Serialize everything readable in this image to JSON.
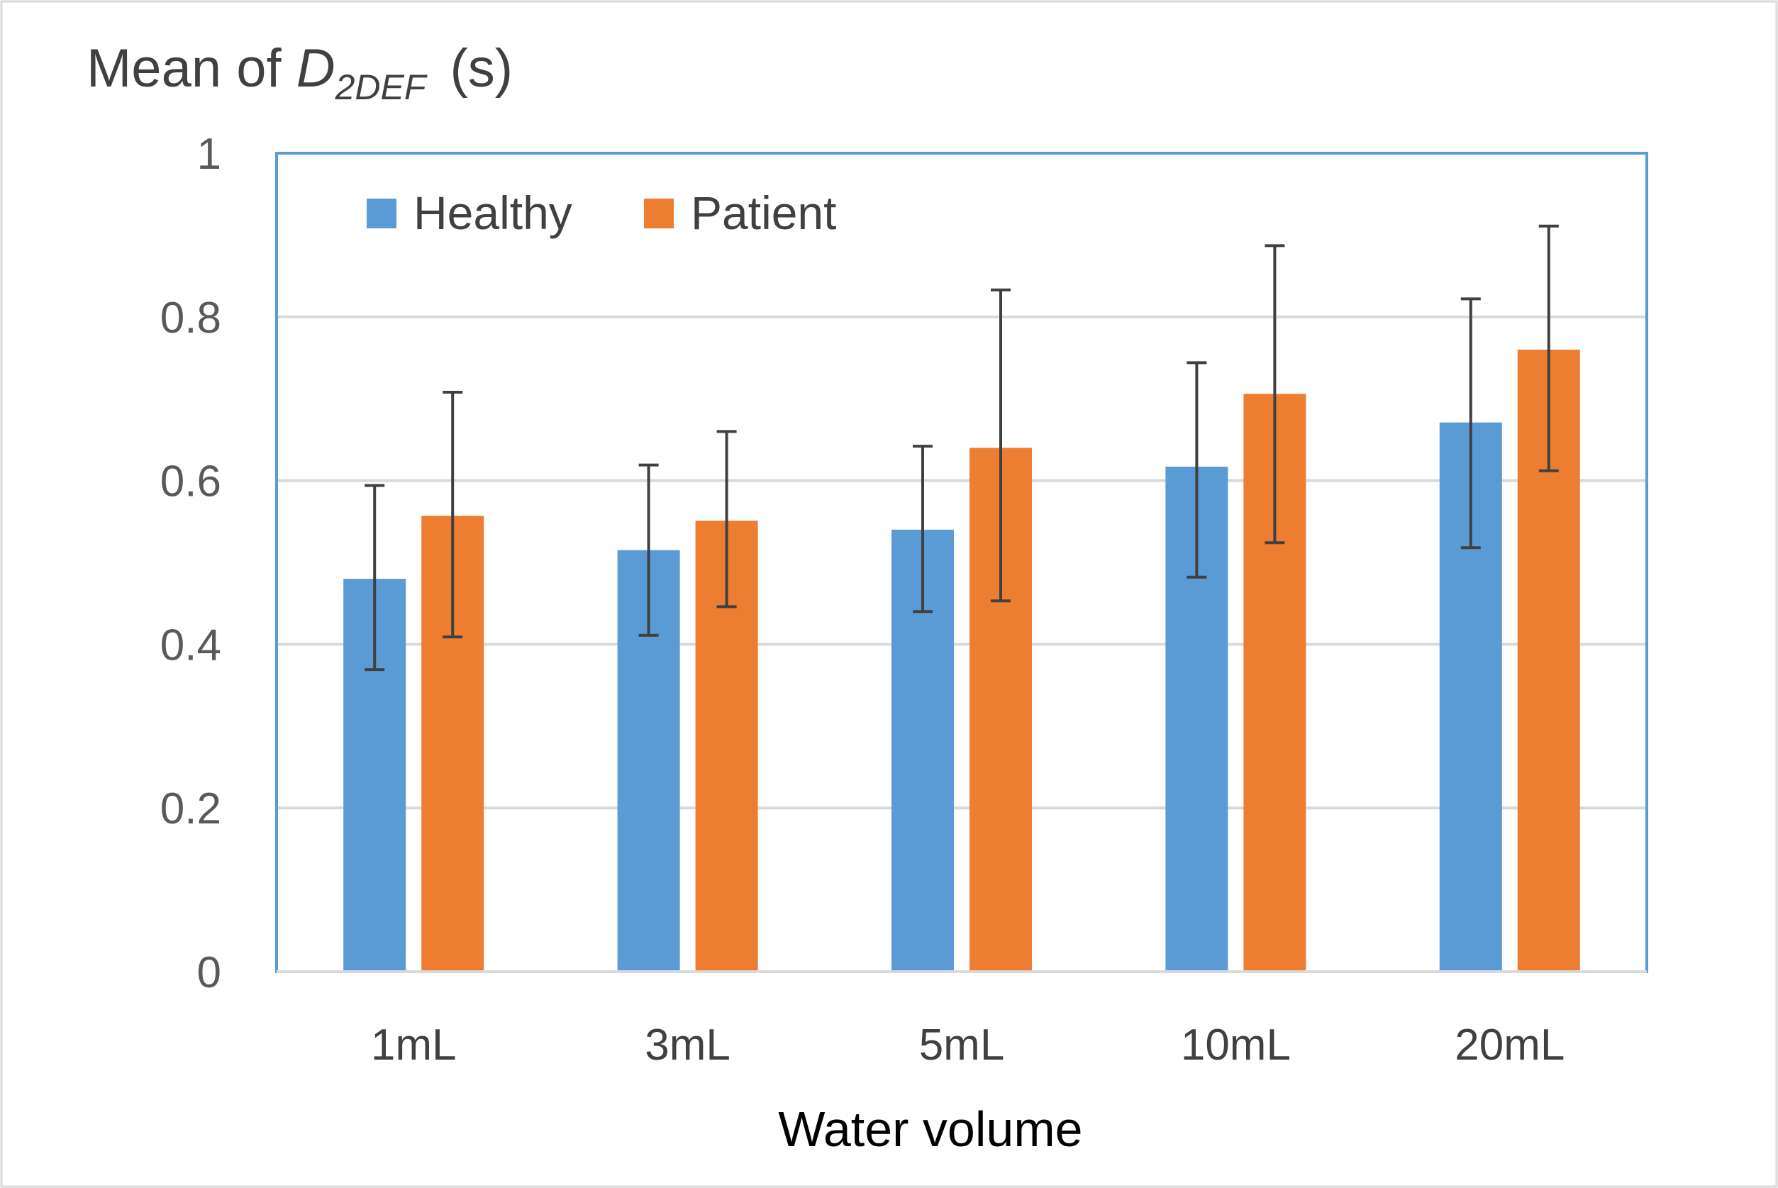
{
  "chart_data": {
    "type": "bar",
    "title": "",
    "ylabel": {
      "prefix": "Mean of ",
      "var": "D",
      "sub": "2DEF",
      "unit": "(s)"
    },
    "xlabel": "Water volume",
    "categories": [
      "1mL",
      "3mL",
      "5mL",
      "10mL",
      "20mL"
    ],
    "ylim": [
      0,
      1
    ],
    "yticks": [
      {
        "value": 0,
        "label": "0"
      },
      {
        "value": 0.2,
        "label": "0.2"
      },
      {
        "value": 0.4,
        "label": "0.4"
      },
      {
        "value": 0.6,
        "label": "0.6"
      },
      {
        "value": 0.8,
        "label": "0.8"
      },
      {
        "value": 1,
        "label": "1"
      }
    ],
    "grid": true,
    "legend_position": "top-left",
    "series": [
      {
        "name": "Healthy",
        "color": "#5B9BD5",
        "values": [
          0.48,
          0.515,
          0.54,
          0.617,
          0.671
        ],
        "error_low": [
          0.369,
          0.411,
          0.44,
          0.482,
          0.518
        ],
        "error_high": [
          0.594,
          0.619,
          0.642,
          0.744,
          0.822
        ]
      },
      {
        "name": "Patient",
        "color": "#ED7D31",
        "values": [
          0.557,
          0.551,
          0.64,
          0.706,
          0.76
        ],
        "error_low": [
          0.409,
          0.446,
          0.453,
          0.524,
          0.612
        ],
        "error_high": [
          0.708,
          0.66,
          0.833,
          0.887,
          0.911
        ]
      }
    ],
    "colors": {
      "plot_border": "#5B9BD5",
      "gridline": "#D9D9D9",
      "error_bar": "#404040",
      "outer_border": "#D9D9D9"
    }
  }
}
